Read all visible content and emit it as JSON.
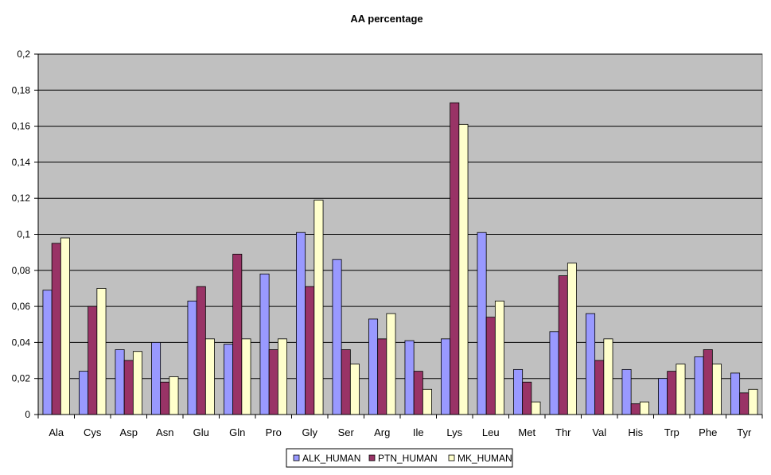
{
  "chart_data": {
    "type": "bar",
    "title": "AA percentage",
    "xlabel": "",
    "ylabel": "",
    "ylim": [
      0,
      0.2
    ],
    "ytick_step": 0.02,
    "grid": true,
    "legend_position": "bottom",
    "plot_background": "#c0c0c0",
    "categories": [
      "Ala",
      "Cys",
      "Asp",
      "Asn",
      "Glu",
      "Gln",
      "Pro",
      "Gly",
      "Ser",
      "Arg",
      "Ile",
      "Lys",
      "Leu",
      "Met",
      "Thr",
      "Val",
      "His",
      "Trp",
      "Phe",
      "Tyr"
    ],
    "ytick_labels": [
      "0",
      "0,02",
      "0,04",
      "0,06",
      "0,08",
      "0,1",
      "0,12",
      "0,14",
      "0,16",
      "0,18",
      "0,2"
    ],
    "series": [
      {
        "name": "ALK_HUMAN",
        "color": "#9999ff",
        "values": [
          0.069,
          0.024,
          0.036,
          0.04,
          0.063,
          0.039,
          0.078,
          0.101,
          0.086,
          0.053,
          0.041,
          0.042,
          0.101,
          0.025,
          0.046,
          0.056,
          0.025,
          0.02,
          0.032,
          0.023
        ]
      },
      {
        "name": "PTN_HUMAN",
        "color": "#993366",
        "values": [
          0.095,
          0.06,
          0.03,
          0.018,
          0.071,
          0.089,
          0.036,
          0.071,
          0.036,
          0.042,
          0.024,
          0.173,
          0.054,
          0.018,
          0.077,
          0.03,
          0.006,
          0.024,
          0.036,
          0.012
        ]
      },
      {
        "name": "MK_HUMAN",
        "color": "#ffffcc",
        "values": [
          0.098,
          0.07,
          0.035,
          0.021,
          0.042,
          0.042,
          0.042,
          0.119,
          0.028,
          0.056,
          0.014,
          0.161,
          0.063,
          0.007,
          0.084,
          0.042,
          0.007,
          0.028,
          0.028,
          0.014
        ]
      }
    ]
  }
}
